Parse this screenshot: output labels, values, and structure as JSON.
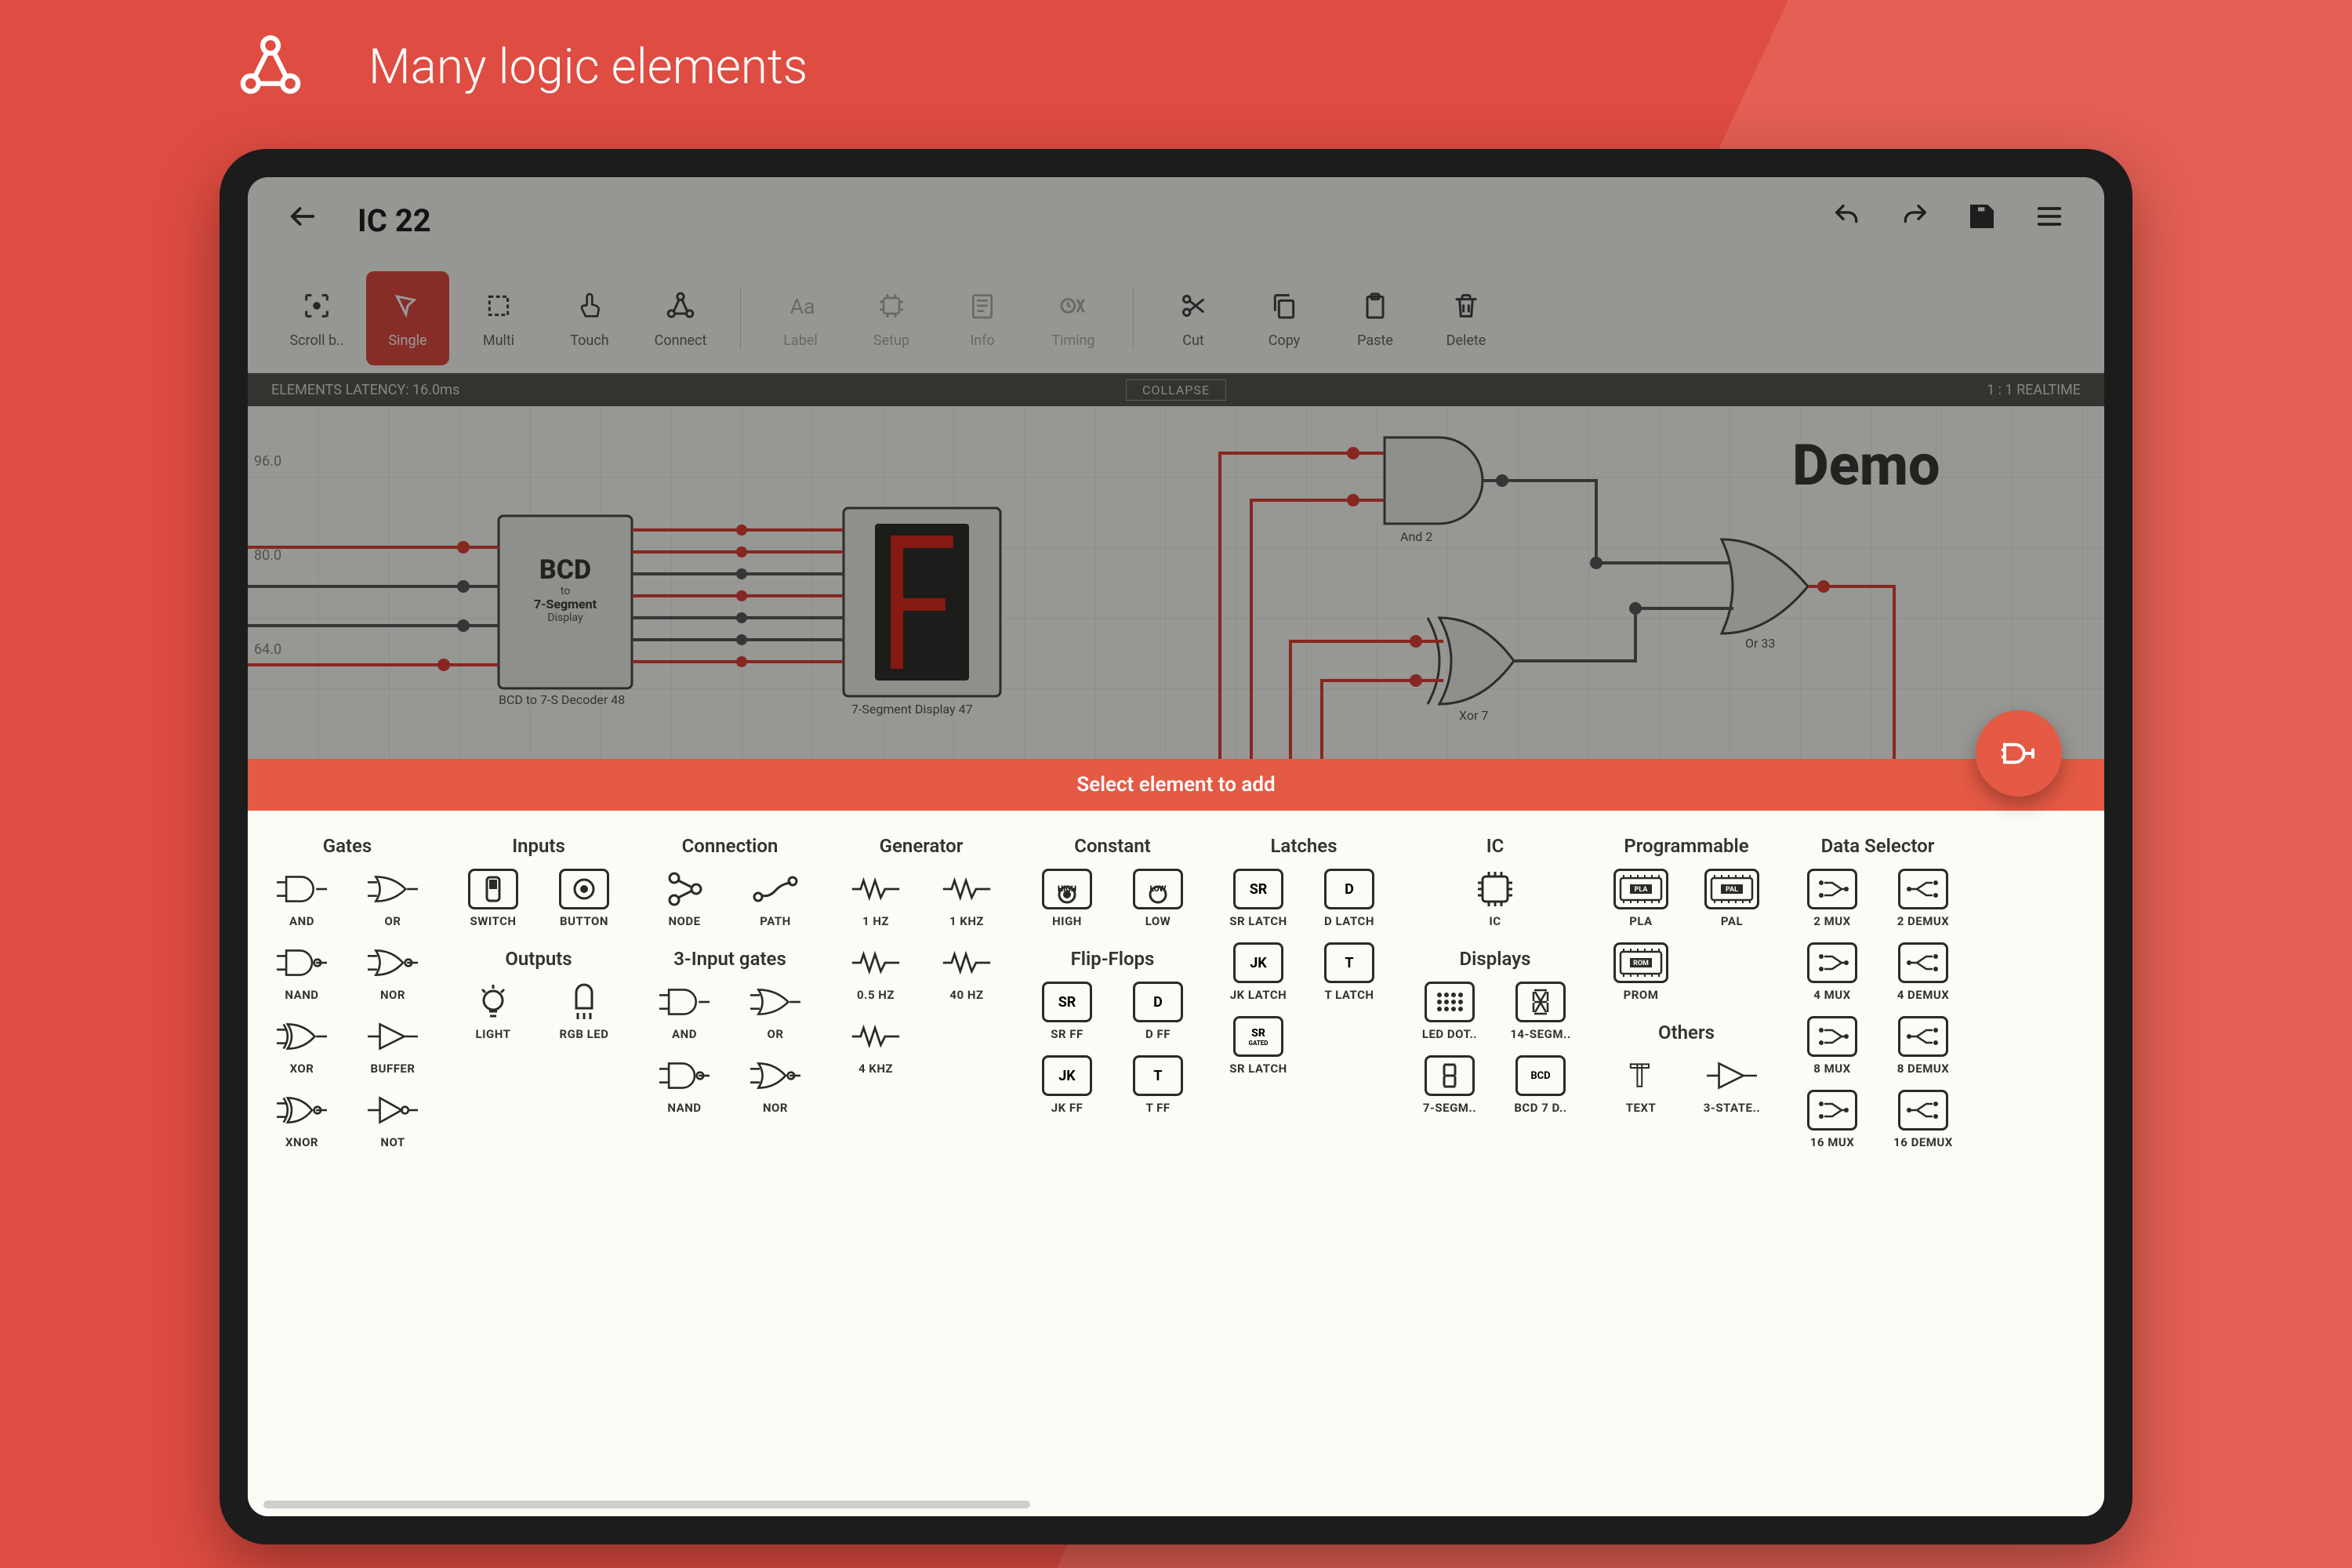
{
  "page": {
    "title": "Many logic elements"
  },
  "colors": {
    "accent": "#e45a44",
    "accent_dark": "#df4c41",
    "wire_active": "#df4138",
    "wire_idle": "#5a5a5a",
    "bg": "#fcfcf7"
  },
  "app": {
    "title": "IC 22",
    "header_actions": [
      "undo",
      "redo",
      "save",
      "menu"
    ]
  },
  "toolbar": [
    {
      "label": "Scroll b..",
      "icon": "target",
      "active": false
    },
    {
      "label": "Single",
      "icon": "cursor",
      "active": true
    },
    {
      "label": "Multi",
      "icon": "multi",
      "active": false
    },
    {
      "label": "Touch",
      "icon": "touch",
      "active": false
    },
    {
      "label": "Connect",
      "icon": "connect",
      "active": false
    },
    {
      "sep": true
    },
    {
      "label": "Label",
      "icon": "text",
      "disabled": true
    },
    {
      "label": "Setup",
      "icon": "chip",
      "disabled": true
    },
    {
      "label": "Info",
      "icon": "info",
      "disabled": true
    },
    {
      "label": "Timing",
      "icon": "timing",
      "disabled": true
    },
    {
      "sep": true
    },
    {
      "label": "Cut",
      "icon": "cut"
    },
    {
      "label": "Copy",
      "icon": "copy"
    },
    {
      "label": "Paste",
      "icon": "paste"
    },
    {
      "label": "Delete",
      "icon": "trash"
    }
  ],
  "status": {
    "left": "ELEMENTS LATENCY: 16.0ms",
    "center": "COLLAPSE",
    "right": "1 : 1 REALTIME"
  },
  "canvas": {
    "axis": [
      "96.0",
      "80.0",
      "64.0"
    ],
    "watermark": "Demo",
    "components": {
      "bcd": {
        "title_l1": "BCD",
        "title_l2": "to",
        "title_l3": "7-Segment",
        "title_l4": "Display",
        "caption": "BCD to 7-S Decoder 48"
      },
      "seg": {
        "caption": "7-Segment Display 47"
      },
      "and": {
        "caption": "And 2"
      },
      "or": {
        "caption": "Or 33"
      },
      "xor": {
        "caption": "Xor 7"
      }
    }
  },
  "panel": {
    "banner": "Select element to add",
    "columns": [
      {
        "title": "Gates",
        "rows": [
          [
            {
              "l": "AND",
              "i": "gate-and"
            },
            {
              "l": "OR",
              "i": "gate-or"
            }
          ],
          [
            {
              "l": "NAND",
              "i": "gate-nand"
            },
            {
              "l": "NOR",
              "i": "gate-nor"
            }
          ],
          [
            {
              "l": "XOR",
              "i": "gate-xor"
            },
            {
              "l": "BUFFER",
              "i": "gate-buf"
            }
          ],
          [
            {
              "l": "XNOR",
              "i": "gate-xnor"
            },
            {
              "l": "NOT",
              "i": "gate-not"
            }
          ]
        ]
      },
      {
        "title": "Inputs",
        "rows": [
          [
            {
              "l": "SWITCH",
              "i": "switch"
            },
            {
              "l": "BUTTON",
              "i": "button"
            }
          ]
        ],
        "sub": {
          "title": "Outputs",
          "rows": [
            [
              {
                "l": "LIGHT",
                "i": "light"
              },
              {
                "l": "RGB LED",
                "i": "rgb"
              }
            ]
          ]
        }
      },
      {
        "title": "Connection",
        "rows": [
          [
            {
              "l": "NODE",
              "i": "node"
            },
            {
              "l": "PATH",
              "i": "path"
            }
          ]
        ],
        "sub": {
          "title": "3-Input gates",
          "rows": [
            [
              {
                "l": "AND",
                "i": "gate-and"
              },
              {
                "l": "OR",
                "i": "gate-or"
              }
            ],
            [
              {
                "l": "NAND",
                "i": "gate-nand"
              },
              {
                "l": "NOR",
                "i": "gate-nor"
              }
            ]
          ]
        }
      },
      {
        "title": "Generator",
        "rows": [
          [
            {
              "l": "1 HZ",
              "i": "wave"
            },
            {
              "l": "1 KHZ",
              "i": "wave"
            }
          ],
          [
            {
              "l": "0.5 HZ",
              "i": "wave"
            },
            {
              "l": "40 HZ",
              "i": "wave"
            }
          ],
          [
            {
              "l": "4 KHZ",
              "i": "wave"
            }
          ]
        ]
      },
      {
        "title": "Constant",
        "rows": [
          [
            {
              "l": "HIGH",
              "i": "high",
              "t": "HIGH"
            },
            {
              "l": "LOW",
              "i": "low",
              "t": "LOW"
            }
          ]
        ],
        "sub": {
          "title": "Flip-Flops",
          "rows": [
            [
              {
                "l": "SR FF",
                "i": "box",
                "t": "SR"
              },
              {
                "l": "D FF",
                "i": "box",
                "t": "D"
              }
            ],
            [
              {
                "l": "JK FF",
                "i": "box",
                "t": "JK"
              },
              {
                "l": "T FF",
                "i": "box",
                "t": "T"
              }
            ]
          ]
        }
      },
      {
        "title": "Latches",
        "rows": [
          [
            {
              "l": "SR LATCH",
              "i": "box",
              "t": "SR"
            },
            {
              "l": "D LATCH",
              "i": "box",
              "t": "D"
            }
          ],
          [
            {
              "l": "JK LATCH",
              "i": "box",
              "t": "JK"
            },
            {
              "l": "T LATCH",
              "i": "box",
              "t": "T"
            }
          ],
          [
            {
              "l": "SR LATCH",
              "i": "box2",
              "t": "SR"
            }
          ]
        ]
      },
      {
        "title": "IC",
        "rows": [
          [
            {
              "l": "IC",
              "i": "ic"
            }
          ]
        ],
        "sub": {
          "title": "Displays",
          "rows": [
            [
              {
                "l": "LED DOT..",
                "i": "dots"
              },
              {
                "l": "14-SEGM..",
                "i": "seg14"
              }
            ],
            [
              {
                "l": "7-SEGM..",
                "i": "seg7"
              },
              {
                "l": "BCD 7 D..",
                "i": "bcdbox",
                "t": "BCD"
              }
            ]
          ]
        }
      },
      {
        "title": "Programmable",
        "rows": [
          [
            {
              "l": "PLA",
              "i": "progbox",
              "t": "PLA"
            },
            {
              "l": "PAL",
              "i": "progbox",
              "t": "PAL"
            }
          ],
          [
            {
              "l": "PROM",
              "i": "progbox",
              "t": "ROM"
            }
          ]
        ],
        "sub": {
          "title": "Others",
          "rows": [
            [
              {
                "l": "TEXT",
                "i": "text"
              },
              {
                "l": "3-STATE..",
                "i": "gate-buf"
              }
            ]
          ]
        }
      },
      {
        "title": "Data Selector",
        "rows": [
          [
            {
              "l": "2 MUX",
              "i": "mux"
            },
            {
              "l": "2 DEMUX",
              "i": "demux"
            }
          ],
          [
            {
              "l": "4 MUX",
              "i": "mux"
            },
            {
              "l": "4 DEMUX",
              "i": "demux"
            }
          ],
          [
            {
              "l": "8 MUX",
              "i": "mux"
            },
            {
              "l": "8 DEMUX",
              "i": "demux"
            }
          ],
          [
            {
              "l": "16 MUX",
              "i": "mux"
            },
            {
              "l": "16 DEMUX",
              "i": "demux"
            }
          ]
        ]
      }
    ]
  }
}
